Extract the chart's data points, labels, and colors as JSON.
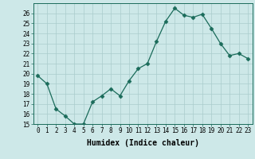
{
  "x": [
    0,
    1,
    2,
    3,
    4,
    5,
    6,
    7,
    8,
    9,
    10,
    11,
    12,
    13,
    14,
    15,
    16,
    17,
    18,
    19,
    20,
    21,
    22,
    23
  ],
  "y": [
    19.8,
    19.0,
    16.5,
    15.8,
    15.0,
    15.0,
    17.2,
    17.8,
    18.5,
    17.8,
    19.3,
    20.5,
    21.0,
    23.2,
    25.2,
    26.5,
    25.8,
    25.6,
    25.9,
    24.5,
    23.0,
    21.8,
    22.0,
    21.5
  ],
  "line_color": "#1a6b5a",
  "marker": "D",
  "marker_size": 2.5,
  "bg_color": "#cde8e8",
  "grid_color": "#aacccc",
  "xlabel": "Humidex (Indice chaleur)",
  "xlim": [
    -0.5,
    23.5
  ],
  "ylim": [
    15,
    27
  ],
  "yticks": [
    15,
    16,
    17,
    18,
    19,
    20,
    21,
    22,
    23,
    24,
    25,
    26
  ],
  "xticks": [
    0,
    1,
    2,
    3,
    4,
    5,
    6,
    7,
    8,
    9,
    10,
    11,
    12,
    13,
    14,
    15,
    16,
    17,
    18,
    19,
    20,
    21,
    22,
    23
  ],
  "tick_fontsize": 5.5,
  "xlabel_fontsize": 7.0
}
